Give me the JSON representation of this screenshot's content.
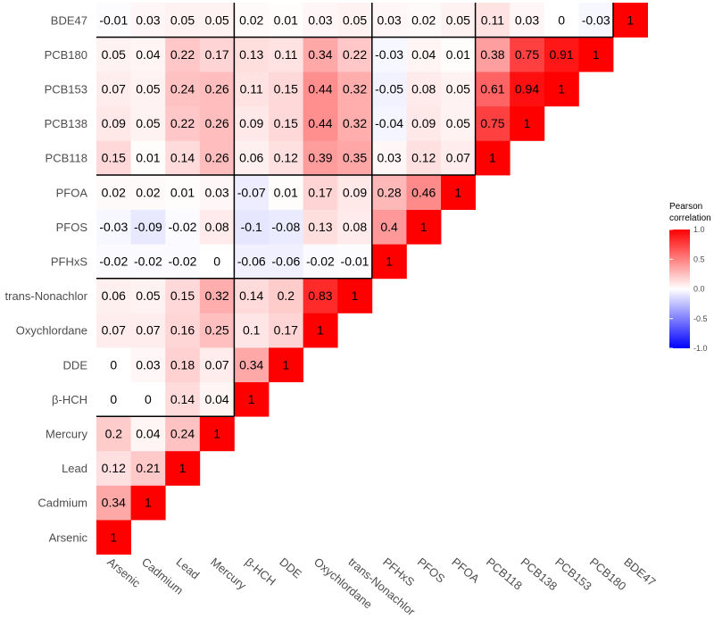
{
  "chart_data": {
    "type": "heatmap",
    "title": "",
    "xlabel": "",
    "ylabel": "",
    "variables": [
      "Arsenic",
      "Cadmium",
      "Lead",
      "Mercury",
      "β-HCH",
      "DDE",
      "Oxychlordane",
      "trans-Nonachlor",
      "PFHxS",
      "PFOS",
      "PFOA",
      "PCB118",
      "PCB138",
      "PCB153",
      "PCB180",
      "BDE47"
    ],
    "matrix": [
      [
        1
      ],
      [
        0.34,
        1
      ],
      [
        0.12,
        0.21,
        1
      ],
      [
        0.2,
        0.04,
        0.24,
        1
      ],
      [
        0,
        0,
        0.14,
        0.04,
        1
      ],
      [
        0,
        0.03,
        0.18,
        0.07,
        0.34,
        1
      ],
      [
        0.07,
        0.07,
        0.16,
        0.25,
        0.1,
        0.17,
        1
      ],
      [
        0.06,
        0.05,
        0.15,
        0.32,
        0.14,
        0.2,
        0.83,
        1
      ],
      [
        -0.02,
        -0.02,
        -0.02,
        0,
        -0.06,
        -0.06,
        -0.02,
        -0.01,
        1
      ],
      [
        -0.03,
        -0.09,
        -0.02,
        0.08,
        -0.1,
        -0.08,
        0.13,
        0.08,
        0.4,
        1
      ],
      [
        0.02,
        0.02,
        0.01,
        0.03,
        -0.07,
        0.01,
        0.17,
        0.09,
        0.28,
        0.46,
        1
      ],
      [
        0.15,
        0.01,
        0.14,
        0.26,
        0.06,
        0.12,
        0.39,
        0.35,
        0.03,
        0.12,
        0.07,
        1
      ],
      [
        0.09,
        0.05,
        0.22,
        0.26,
        0.09,
        0.15,
        0.44,
        0.32,
        -0.04,
        0.09,
        0.05,
        0.75,
        1
      ],
      [
        0.07,
        0.05,
        0.24,
        0.26,
        0.11,
        0.15,
        0.44,
        0.32,
        -0.05,
        0.08,
        0.05,
        0.61,
        0.94,
        1
      ],
      [
        0.05,
        0.04,
        0.22,
        0.17,
        0.13,
        0.11,
        0.34,
        0.22,
        -0.03,
        0.04,
        0.01,
        0.38,
        0.75,
        0.91,
        1
      ],
      [
        -0.01,
        0.03,
        0.05,
        0.05,
        0.02,
        0.01,
        0.03,
        0.05,
        0.03,
        0.02,
        0.05,
        0.11,
        0.03,
        0,
        -0.03,
        1
      ]
    ],
    "group_boundaries_after": [
      4,
      8,
      11,
      15
    ],
    "color_scale": {
      "low": "#0000ff",
      "mid": "#ffffff",
      "high": "#ff0000",
      "limits": [
        -1,
        1
      ]
    },
    "legend": {
      "title_lines": [
        "Pearson",
        "correlation"
      ],
      "ticks": [
        "1.0",
        "0.5",
        "0.0",
        "-0.5",
        "-1.0"
      ],
      "placement": "right"
    },
    "grid": false
  }
}
